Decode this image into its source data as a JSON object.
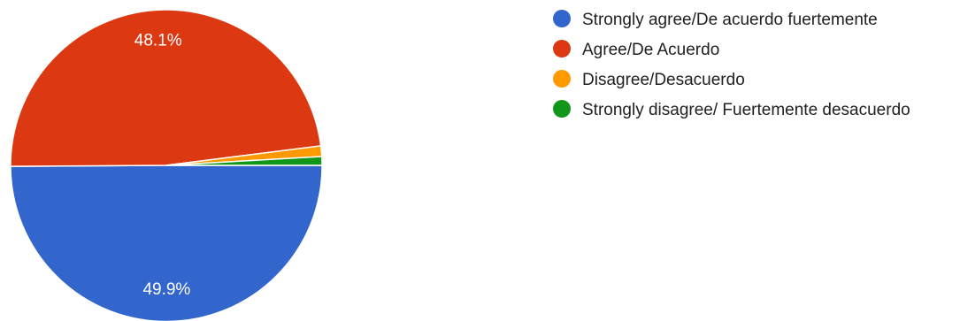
{
  "chart_data": {
    "type": "pie",
    "slices": [
      {
        "label": "Strongly agree/De acuerdo fuertemente",
        "value": 49.9,
        "color": "#3366cc",
        "display": "49.9%"
      },
      {
        "label": "Agree/De Acuerdo",
        "value": 48.1,
        "color": "#dc3912",
        "display": "48.1%"
      },
      {
        "label": "Disagree/Desacuerdo",
        "value": 1.1,
        "color": "#ff9900",
        "display": ""
      },
      {
        "label": "Strongly disagree/ Fuertemente desacuerdo",
        "value": 0.9,
        "color": "#109618",
        "display": ""
      }
    ],
    "legend_position": "right"
  }
}
